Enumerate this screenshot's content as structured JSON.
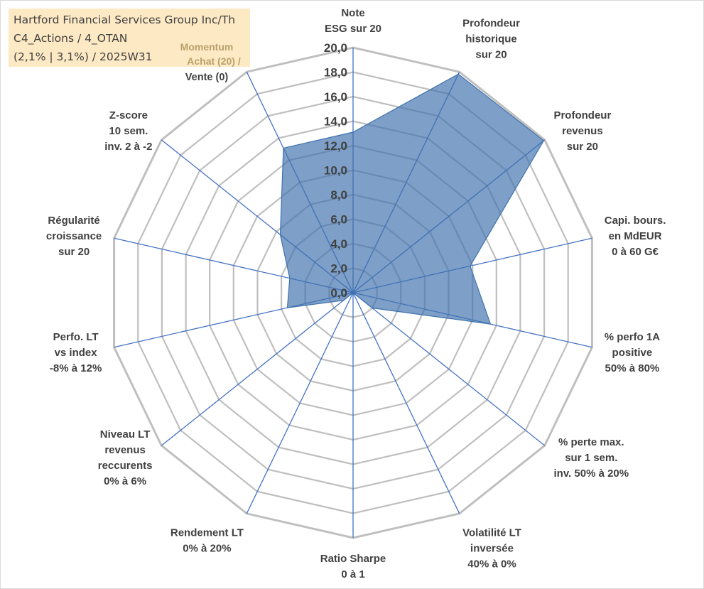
{
  "title_box": {
    "line1": "Hartford Financial Services Group Inc/Th",
    "line2": "C4_Actions / 4_OTAN",
    "line3": "(2,1% | 3,1%) / 2025W31"
  },
  "momentum": {
    "line1": "Momentum",
    "line2": "Achat (20) /",
    "line3": "Vente (0)"
  },
  "colors": {
    "fill": "#3f72ae",
    "fill_opacity": 0.68,
    "spoke": "#4472c4",
    "grid": "#bfbfbf",
    "label": "#404040",
    "title_bg": "#fde9c4",
    "momentum_text": "#b8a16a"
  },
  "chart_data": {
    "type": "radar",
    "title": "",
    "rmin": 0,
    "rmax": 20,
    "tick_step": 2,
    "tick_labels": [
      "0,0",
      "2,0",
      "4,0",
      "6,0",
      "8,0",
      "10,0",
      "12,0",
      "14,0",
      "16,0",
      "18,0",
      "20,0"
    ],
    "axes": [
      [
        "Note",
        "ESG sur 20"
      ],
      [
        "Profondeur",
        "historique",
        "sur 20"
      ],
      [
        "Profondeur",
        "revenus",
        "sur 20"
      ],
      [
        "Capi. bours.",
        "en MdEUR",
        "0 à 60 G€"
      ],
      [
        "% perfo 1A",
        "positive",
        "50% à 80%"
      ],
      [
        "% perte max.",
        "sur 1 sem.",
        "inv. 50% à 20%"
      ],
      [
        "Volatilité LT",
        "inversée",
        "40% à 0%"
      ],
      [
        "Ratio Sharpe",
        "0 à 1"
      ],
      [
        "Rendement LT",
        "0% à 20%"
      ],
      [
        "Niveau LT",
        "revenus",
        "reccurents",
        "0% à 6%"
      ],
      [
        "Perfo. LT",
        "vs index",
        "-8% à 12%"
      ],
      [
        "Régularité",
        "croissance",
        "sur 20"
      ],
      [
        "Z-score",
        "10 sem.",
        "inv. 2 à -2"
      ],
      [
        "Momentum",
        "Achat (20) /",
        "Vente (0)"
      ]
    ],
    "series": [
      {
        "values": [
          13.1,
          19.8,
          19.9,
          9.8,
          11.5,
          2.0,
          0.0,
          0.0,
          0.0,
          1.0,
          5.5,
          5.3,
          7.6,
          13.1
        ]
      }
    ]
  }
}
